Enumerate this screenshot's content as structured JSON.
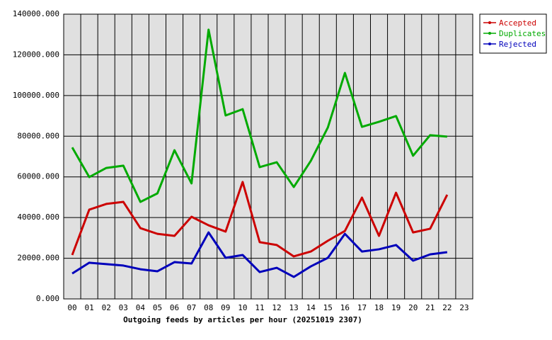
{
  "chart_data": {
    "type": "line",
    "title": "Outgoing feeds by articles per hour (20251019 2307)",
    "categories": [
      "00",
      "01",
      "02",
      "03",
      "04",
      "05",
      "06",
      "07",
      "08",
      "09",
      "10",
      "11",
      "12",
      "13",
      "14",
      "15",
      "16",
      "17",
      "18",
      "19",
      "20",
      "21",
      "22",
      "23"
    ],
    "series": [
      {
        "name": "Accepted",
        "color": "#cc0000",
        "values": [
          21600,
          43900,
          46700,
          47700,
          34800,
          32000,
          31000,
          40400,
          36200,
          33100,
          57500,
          27900,
          26500,
          20900,
          23300,
          28600,
          33400,
          49800,
          31000,
          52200,
          32700,
          34500,
          51200,
          null
        ]
      },
      {
        "name": "Duplicates",
        "color": "#00aa00",
        "values": [
          74500,
          59900,
          64400,
          65500,
          47700,
          51900,
          73100,
          56800,
          132400,
          90200,
          93300,
          64800,
          67200,
          55000,
          67900,
          84300,
          111100,
          84600,
          87100,
          89900,
          70400,
          80500,
          79800,
          null
        ]
      },
      {
        "name": "Rejected",
        "color": "#0000bb",
        "values": [
          12500,
          17800,
          17100,
          16400,
          14600,
          13600,
          18100,
          17400,
          32700,
          20200,
          21600,
          13200,
          15300,
          10800,
          16000,
          20200,
          32000,
          23300,
          24400,
          26500,
          18800,
          21900,
          23000,
          null
        ]
      }
    ],
    "ylim": [
      0,
      140000
    ],
    "yticks": [
      {
        "value": 0,
        "label": "0.000"
      },
      {
        "value": 20000,
        "label": "20000.000"
      },
      {
        "value": 40000,
        "label": "40000.000"
      },
      {
        "value": 60000,
        "label": "60000.000"
      },
      {
        "value": 80000,
        "label": "80000.000"
      },
      {
        "value": 100000,
        "label": "100000.000"
      },
      {
        "value": 120000,
        "label": "120000.000"
      },
      {
        "value": 140000,
        "label": "140000.000"
      }
    ],
    "grid": true,
    "legend": "top-right"
  }
}
